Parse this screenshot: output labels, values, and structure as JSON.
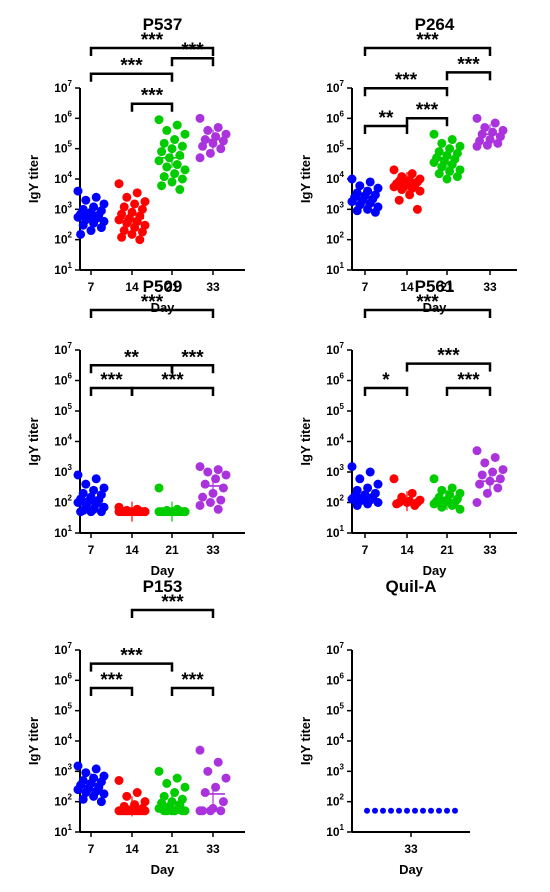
{
  "colors": {
    "day7": "#0000ff",
    "day14": "#ff0000",
    "day21": "#00cc00",
    "day33": "#aa33dd",
    "axis": "#000000"
  },
  "chart_data": [
    {
      "type": "scatter",
      "title": "P537",
      "xlabel": "Day",
      "ylabel": "IgY titer",
      "y_scale": "log10",
      "ylim": [
        10,
        10000000
      ],
      "y_ticks": [
        {
          "base": "10",
          "exp": "1"
        },
        {
          "base": "10",
          "exp": "2"
        },
        {
          "base": "10",
          "exp": "3"
        },
        {
          "base": "10",
          "exp": "4"
        },
        {
          "base": "10",
          "exp": "5"
        },
        {
          "base": "10",
          "exp": "6"
        },
        {
          "base": "10",
          "exp": "7"
        }
      ],
      "categories": [
        "7",
        "14",
        "21",
        "33"
      ],
      "series": [
        {
          "values": [
            4000,
            2500,
            2000,
            1500,
            1200,
            1000,
            900,
            800,
            700,
            650,
            600,
            550,
            500,
            450,
            400,
            350,
            300,
            250,
            200,
            150
          ]
        },
        {
          "values": [
            7000,
            3500,
            2500,
            1800,
            1500,
            1200,
            1000,
            800,
            700,
            600,
            500,
            450,
            400,
            350,
            300,
            250,
            200,
            180,
            150,
            120,
            100
          ]
        },
        {
          "values": [
            900000,
            600000,
            400000,
            300000,
            200000,
            150000,
            120000,
            100000,
            80000,
            60000,
            50000,
            40000,
            30000,
            25000,
            20000,
            15000,
            12000,
            10000,
            8000,
            6000,
            4500
          ]
        },
        {
          "values": [
            1000000,
            500000,
            400000,
            300000,
            250000,
            200000,
            180000,
            150000,
            120000,
            100000,
            70000,
            50000
          ]
        }
      ],
      "medians": [
        700,
        500,
        50000,
        200000
      ],
      "significance": [
        {
          "from": "7",
          "to": "33",
          "label": "***",
          "level": 1.0
        },
        {
          "from": "21",
          "to": "33",
          "label": "***",
          "level": 0.7
        },
        {
          "from": "7",
          "to": "21",
          "label": "***",
          "level": 0.3
        },
        {
          "from": "14",
          "to": "21",
          "label": "***",
          "level": 0.0
        }
      ]
    },
    {
      "type": "scatter",
      "title": "P264",
      "xlabel": "Day",
      "ylabel": "IgY titer",
      "y_scale": "log10",
      "ylim": [
        10,
        10000000
      ],
      "y_ticks": [
        {
          "base": "10",
          "exp": "1"
        },
        {
          "base": "10",
          "exp": "2"
        },
        {
          "base": "10",
          "exp": "3"
        },
        {
          "base": "10",
          "exp": "4"
        },
        {
          "base": "10",
          "exp": "5"
        },
        {
          "base": "10",
          "exp": "6"
        },
        {
          "base": "10",
          "exp": "7"
        }
      ],
      "categories": [
        "7",
        "14",
        "21",
        "33"
      ],
      "series": [
        {
          "values": [
            10000,
            8000,
            6000,
            5000,
            4000,
            3500,
            3000,
            2800,
            2500,
            2200,
            2000,
            1800,
            1600,
            1400,
            1200,
            1000,
            900,
            800
          ]
        },
        {
          "values": [
            20000,
            15000,
            12000,
            10000,
            9000,
            8500,
            8000,
            7500,
            7000,
            6500,
            6000,
            5500,
            5000,
            4500,
            4000,
            3000,
            2000,
            1000
          ]
        },
        {
          "values": [
            300000,
            200000,
            150000,
            120000,
            100000,
            80000,
            70000,
            60000,
            50000,
            45000,
            40000,
            35000,
            30000,
            25000,
            20000,
            18000,
            15000,
            12000,
            10000
          ]
        },
        {
          "values": [
            1000000,
            700000,
            500000,
            400000,
            350000,
            300000,
            250000,
            200000,
            180000,
            150000,
            130000,
            120000
          ]
        }
      ],
      "medians": [
        2500,
        8000,
        50000,
        300000
      ],
      "significance": [
        {
          "from": "7",
          "to": "33",
          "label": "***",
          "level": 1.0
        },
        {
          "from": "7",
          "to": "21",
          "label": "***",
          "level": 0.55
        },
        {
          "from": "21",
          "to": "33",
          "label": "***",
          "level": 0.55
        },
        {
          "from": "7",
          "to": "14",
          "label": "**",
          "level": 0.0
        },
        {
          "from": "14",
          "to": "21",
          "label": "***",
          "level": 0.0
        }
      ]
    },
    {
      "type": "scatter",
      "title": "P509",
      "xlabel": "Day",
      "ylabel": "IgY titer",
      "y_scale": "log10",
      "ylim": [
        10,
        10000000
      ],
      "y_ticks": [
        {
          "base": "10",
          "exp": "1"
        },
        {
          "base": "10",
          "exp": "2"
        },
        {
          "base": "10",
          "exp": "3"
        },
        {
          "base": "10",
          "exp": "4"
        },
        {
          "base": "10",
          "exp": "5"
        },
        {
          "base": "10",
          "exp": "6"
        },
        {
          "base": "10",
          "exp": "7"
        }
      ],
      "categories": [
        "7",
        "14",
        "21",
        "33"
      ],
      "series": [
        {
          "values": [
            800,
            600,
            400,
            300,
            250,
            200,
            180,
            150,
            130,
            120,
            110,
            100,
            90,
            80,
            70,
            60,
            55,
            50,
            50,
            50
          ]
        },
        {
          "values": [
            70,
            60,
            55,
            50,
            50,
            50,
            50,
            50,
            50,
            50,
            50,
            50,
            50,
            50,
            50,
            50,
            50
          ]
        },
        {
          "values": [
            300,
            60,
            55,
            50,
            50,
            50,
            50,
            50,
            50,
            50,
            50,
            50,
            50,
            50,
            50,
            50
          ]
        },
        {
          "values": [
            1500,
            1200,
            1000,
            800,
            600,
            400,
            300,
            200,
            150,
            120,
            100,
            80,
            60
          ]
        }
      ],
      "medians": [
        120,
        50,
        50,
        350
      ],
      "significance": [
        {
          "from": "7",
          "to": "33",
          "label": "***",
          "level": 1.0
        },
        {
          "from": "7",
          "to": "21",
          "label": "**",
          "level": 0.55
        },
        {
          "from": "21",
          "to": "33",
          "label": "***",
          "level": 0.55
        },
        {
          "from": "7",
          "to": "14",
          "label": "***",
          "level": 0.0
        },
        {
          "from": "14",
          "to": "33",
          "label": "***",
          "level": 0.0
        }
      ]
    },
    {
      "type": "scatter",
      "title": "P561",
      "xlabel": "Day",
      "ylabel": "IgY titer",
      "y_scale": "log10",
      "ylim": [
        10,
        10000000
      ],
      "y_ticks": [
        {
          "base": "10",
          "exp": "1"
        },
        {
          "base": "10",
          "exp": "2"
        },
        {
          "base": "10",
          "exp": "3"
        },
        {
          "base": "10",
          "exp": "4"
        },
        {
          "base": "10",
          "exp": "5"
        },
        {
          "base": "10",
          "exp": "6"
        },
        {
          "base": "10",
          "exp": "7"
        }
      ],
      "categories": [
        "7",
        "14",
        "21",
        "33"
      ],
      "series": [
        {
          "values": [
            1500,
            1000,
            600,
            400,
            300,
            250,
            200,
            180,
            160,
            150,
            140,
            130,
            120,
            110,
            100,
            90,
            80
          ]
        },
        {
          "values": [
            600,
            200,
            150,
            120,
            110,
            100,
            100,
            100,
            90,
            80
          ]
        },
        {
          "values": [
            600,
            300,
            250,
            200,
            180,
            150,
            130,
            120,
            110,
            100,
            100,
            90,
            80,
            70,
            60
          ]
        },
        {
          "values": [
            5000,
            3000,
            2000,
            1200,
            1000,
            800,
            600,
            500,
            400,
            300,
            200,
            100
          ]
        }
      ],
      "medians": [
        180,
        110,
        120,
        500
      ],
      "significance": [
        {
          "from": "7",
          "to": "33",
          "label": "***",
          "level": 1.0
        },
        {
          "from": "14",
          "to": "33",
          "label": "***",
          "level": 0.6
        },
        {
          "from": "7",
          "to": "14",
          "label": "*",
          "level": 0.0
        },
        {
          "from": "21",
          "to": "33",
          "label": "***",
          "level": 0.0
        }
      ]
    },
    {
      "type": "scatter",
      "title": "P153",
      "xlabel": "Day",
      "ylabel": "IgY titer",
      "y_scale": "log10",
      "ylim": [
        10,
        10000000
      ],
      "y_ticks": [
        {
          "base": "10",
          "exp": "1"
        },
        {
          "base": "10",
          "exp": "2"
        },
        {
          "base": "10",
          "exp": "3"
        },
        {
          "base": "10",
          "exp": "4"
        },
        {
          "base": "10",
          "exp": "5"
        },
        {
          "base": "10",
          "exp": "6"
        },
        {
          "base": "10",
          "exp": "7"
        }
      ],
      "categories": [
        "7",
        "14",
        "21",
        "33"
      ],
      "series": [
        {
          "values": [
            1500,
            1200,
            900,
            700,
            600,
            500,
            450,
            400,
            350,
            300,
            280,
            250,
            220,
            200,
            180,
            150,
            120,
            100
          ]
        },
        {
          "values": [
            500,
            200,
            150,
            100,
            80,
            70,
            60,
            55,
            50,
            50,
            50,
            50,
            50,
            50,
            50,
            50,
            50,
            50
          ]
        },
        {
          "values": [
            1000,
            600,
            400,
            300,
            200,
            150,
            120,
            100,
            90,
            80,
            70,
            60,
            55,
            50,
            50,
            50,
            50,
            50,
            50
          ]
        },
        {
          "values": [
            5000,
            2000,
            1000,
            600,
            300,
            200,
            100,
            60,
            50,
            50,
            50,
            50
          ]
        }
      ],
      "medians": [
        400,
        70,
        80,
        180
      ],
      "significance": [
        {
          "from": "14",
          "to": "33",
          "label": "***",
          "level": 1.0
        },
        {
          "from": "7",
          "to": "21",
          "label": "***",
          "level": 0.6
        },
        {
          "from": "7",
          "to": "14",
          "label": "***",
          "level": 0.0
        },
        {
          "from": "21",
          "to": "33",
          "label": "***",
          "level": 0.0
        }
      ]
    },
    {
      "type": "scatter",
      "title": "Quil-A",
      "xlabel": "Day",
      "ylabel": "IgY titer",
      "y_scale": "log10",
      "ylim": [
        10,
        10000000
      ],
      "y_ticks": [
        {
          "base": "10",
          "exp": "1"
        },
        {
          "base": "10",
          "exp": "2"
        },
        {
          "base": "10",
          "exp": "3"
        },
        {
          "base": "10",
          "exp": "4"
        },
        {
          "base": "10",
          "exp": "5"
        },
        {
          "base": "10",
          "exp": "6"
        },
        {
          "base": "10",
          "exp": "7"
        }
      ],
      "categories": [
        "33"
      ],
      "series": [
        {
          "values": [
            50,
            50,
            50,
            50,
            50,
            50,
            50,
            50,
            50,
            50,
            50,
            50
          ]
        }
      ],
      "medians": [
        50
      ],
      "spread": "horizontal-row",
      "significance": []
    }
  ]
}
